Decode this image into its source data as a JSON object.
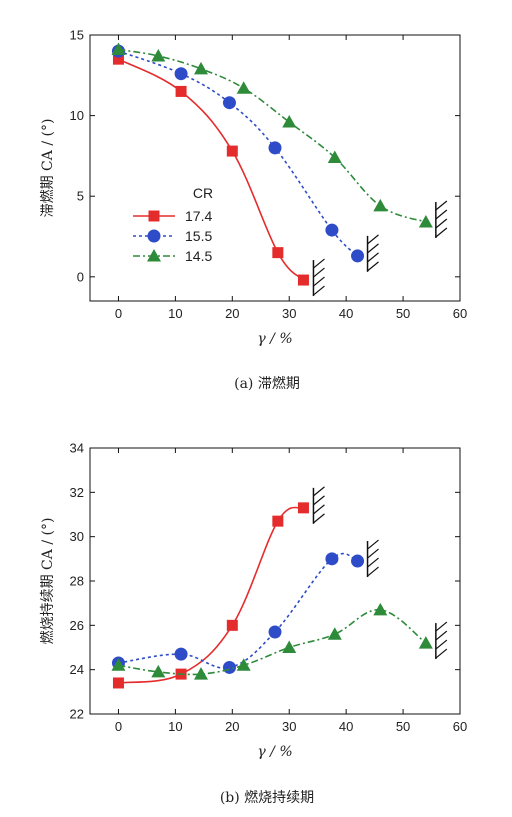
{
  "colors": {
    "s174": "#e52c2c",
    "s155": "#2f4cc8",
    "s145": "#2e8b3a"
  },
  "chart_data": [
    {
      "type": "line",
      "caption": "(a) 滞燃期",
      "xlabel": "γ / %",
      "ylabel": "滞燃期 CA / (°)",
      "xlim": [
        -5,
        60
      ],
      "ylim": [
        -1.5,
        15
      ],
      "xticks": [
        0,
        10,
        20,
        30,
        40,
        50,
        60
      ],
      "yticks": [
        0,
        5,
        10,
        15
      ],
      "legend": {
        "title": "CR",
        "placement": "lower-left"
      },
      "series": [
        {
          "name": "17.4",
          "marker": "square",
          "style": "solid",
          "color": "#e52c2c",
          "x": [
            0,
            11,
            20,
            28,
            32.5
          ],
          "y": [
            13.5,
            11.5,
            7.8,
            1.5,
            -0.2
          ]
        },
        {
          "name": "15.5",
          "marker": "circle",
          "style": "dotted",
          "color": "#2f4cc8",
          "x": [
            0,
            11,
            19.5,
            27.5,
            37.5,
            42
          ],
          "y": [
            14,
            12.6,
            10.8,
            8.0,
            2.9,
            1.3
          ]
        },
        {
          "name": "14.5",
          "marker": "triangle",
          "style": "dashdot",
          "color": "#2e8b3a",
          "x": [
            0,
            7,
            14.5,
            22,
            30,
            38,
            46,
            54
          ],
          "y": [
            14.1,
            13.7,
            12.9,
            11.7,
            9.6,
            7.4,
            4.4,
            3.4
          ]
        }
      ]
    },
    {
      "type": "line",
      "caption": "(b) 燃烧持续期",
      "xlabel": "γ / %",
      "ylabel": "燃烧持续期 CA / (°)",
      "xlim": [
        -5,
        60
      ],
      "ylim": [
        22,
        34
      ],
      "xticks": [
        0,
        10,
        20,
        30,
        40,
        50,
        60
      ],
      "yticks": [
        22,
        24,
        26,
        28,
        30,
        32,
        34
      ],
      "series": [
        {
          "name": "17.4",
          "marker": "square",
          "style": "solid",
          "color": "#e52c2c",
          "x": [
            0,
            11,
            20,
            28,
            32.5
          ],
          "y": [
            23.4,
            23.8,
            26.0,
            30.7,
            31.3
          ]
        },
        {
          "name": "15.5",
          "marker": "circle",
          "style": "dotted",
          "color": "#2f4cc8",
          "x": [
            0,
            11,
            19.5,
            27.5,
            37.5,
            42
          ],
          "y": [
            24.3,
            24.7,
            24.1,
            25.7,
            29.0,
            28.9
          ]
        },
        {
          "name": "14.5",
          "marker": "triangle",
          "style": "dashdot",
          "color": "#2e8b3a",
          "x": [
            0,
            7,
            14.5,
            22,
            30,
            38,
            46,
            54
          ],
          "y": [
            24.2,
            23.9,
            23.8,
            24.2,
            25.0,
            25.6,
            26.7,
            25.2
          ]
        }
      ]
    }
  ]
}
